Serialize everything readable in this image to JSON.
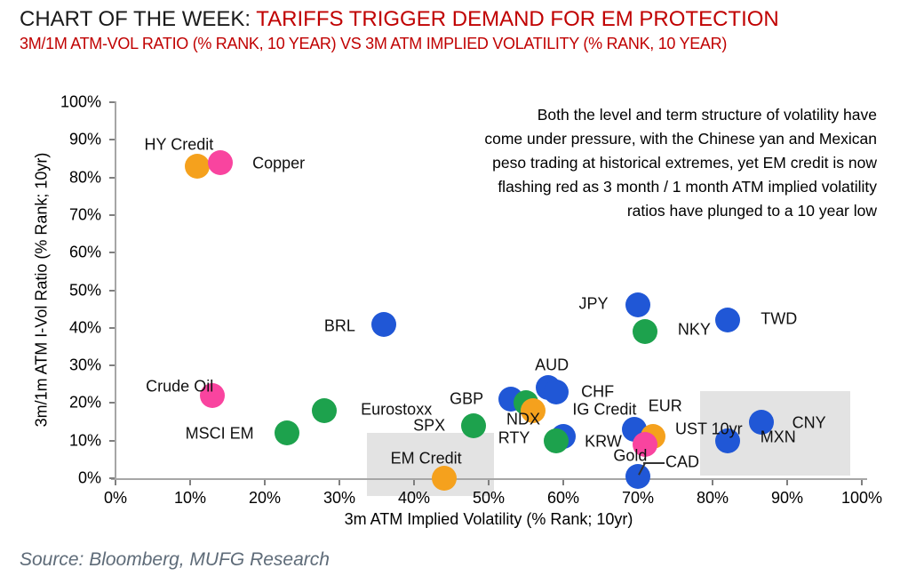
{
  "header": {
    "title_prefix": "CHART OF THE WEEK: ",
    "title_highlight": "TARIFFS TRIGGER DEMAND FOR EM PROTECTION",
    "subtitle": "3M/1M ATM-VOL RATIO (% RANK, 10 YEAR) VS 3M ATM IMPLIED VOLATILITY (% RANK, 10 YEAR)"
  },
  "annotation": {
    "lines": [
      "Both the level and term structure of volatility have",
      "come under pressure, with the Chinese yan and Mexican",
      "peso trading at historical extremes, yet EM credit is now",
      "flashing red as 3 month / 1 month ATM implied volatility",
      "ratios have plunged to a 10 year low"
    ]
  },
  "source": "Source: Bloomberg, MUFG Research",
  "colors": {
    "title_highlight": "#C00000",
    "subtitle": "#C00000",
    "fx": "#2057D6",
    "equity": "#1DA24D",
    "credit": "#F5A11D",
    "rates": "#F5A11D",
    "commodity": "#F9449F",
    "highlight_box": "#E3E3E3",
    "axis": "#A6A6A6",
    "source_text": "#5E6B78"
  },
  "chart_data": {
    "type": "scatter",
    "title": "CHART OF THE WEEK: TARIFFS TRIGGER DEMAND FOR EM PROTECTION",
    "xlabel": "3m ATM Implied Volatility (% Rank; 10yr)",
    "ylabel": "3m/1m ATM I-Vol Ratio (% Rank; 10yr)",
    "xlim": [
      0,
      100
    ],
    "ylim": [
      0,
      100
    ],
    "grid": false,
    "x_ticks": [
      "0%",
      "10%",
      "20%",
      "30%",
      "40%",
      "50%",
      "60%",
      "70%",
      "80%",
      "90%",
      "100%"
    ],
    "y_ticks": [
      "0%",
      "10%",
      "20%",
      "30%",
      "40%",
      "50%",
      "60%",
      "70%",
      "80%",
      "90%",
      "100%"
    ],
    "legend": "none (color denotes asset class: blue=FX, green=equity, orange=credit/rates, pink=commodity)",
    "highlight_boxes": [
      {
        "x1": 33.7,
        "x2": 50.7,
        "y1": -4.7,
        "y2": 12.0
      },
      {
        "x1": 78.3,
        "x2": 98.4,
        "y1": 0.7,
        "y2": 23.2
      }
    ],
    "points": [
      {
        "name": "HY Credit",
        "x": 11,
        "y": 83,
        "series": "credit",
        "label": [
          -21,
          -24
        ]
      },
      {
        "name": "Copper",
        "x": 14,
        "y": 84,
        "series": "commodity",
        "label": [
          66,
          1
        ]
      },
      {
        "name": "Crude Oil",
        "x": 13,
        "y": 22,
        "series": "commodity",
        "label": [
          -37,
          -10
        ]
      },
      {
        "name": "MSCI EM",
        "x": 23,
        "y": 12,
        "series": "equity",
        "label": [
          -76,
          1
        ]
      },
      {
        "name": "Eurostoxx",
        "x": 28,
        "y": 18,
        "series": "equity",
        "label": [
          81,
          -1
        ]
      },
      {
        "name": "SPX",
        "x": 48,
        "y": 14,
        "series": "equity",
        "label": [
          -50,
          0
        ]
      },
      {
        "name": "BRL",
        "x": 36,
        "y": 41,
        "series": "fx",
        "label": [
          -50,
          2
        ]
      },
      {
        "name": "EM Credit",
        "x": 44,
        "y": 0,
        "series": "credit",
        "label": [
          -20,
          -22
        ]
      },
      {
        "name": "GBP",
        "x": 53,
        "y": 21,
        "series": "fx",
        "label": [
          -50,
          0
        ]
      },
      {
        "name": "NDX",
        "x": 55,
        "y": 20,
        "series": "equity",
        "label": [
          -3,
          19
        ]
      },
      {
        "name": "IG Credit",
        "x": 56,
        "y": 18,
        "series": "credit",
        "label": [
          80,
          -1
        ]
      },
      {
        "name": "AUD",
        "x": 58,
        "y": 24,
        "series": "fx",
        "label": [
          4,
          -25
        ]
      },
      {
        "name": "CHF",
        "x": 59,
        "y": 23,
        "series": "fx",
        "label": [
          47,
          0
        ]
      },
      {
        "name": "JPY",
        "x": 70,
        "y": 46,
        "series": "fx",
        "label": [
          -50,
          -1
        ]
      },
      {
        "name": "NKY",
        "x": 71,
        "y": 39,
        "series": "equity",
        "label": [
          55,
          -2
        ]
      },
      {
        "name": "TWD",
        "x": 82,
        "y": 42,
        "series": "fx",
        "label": [
          58,
          -1
        ]
      },
      {
        "name": "KRW",
        "x": 60,
        "y": 11,
        "series": "fx",
        "label": [
          45,
          6
        ]
      },
      {
        "name": "RTY",
        "x": 59,
        "y": 10,
        "series": "equity",
        "label": [
          -47,
          -3
        ]
      },
      {
        "name": "EUR",
        "x": 69.5,
        "y": 13,
        "series": "fx",
        "label": [
          35,
          -26
        ]
      },
      {
        "name": "UST 10yr",
        "x": 72,
        "y": 11,
        "series": "rates",
        "label": [
          63,
          -8
        ]
      },
      {
        "name": "Gold",
        "x": 71,
        "y": 9,
        "series": "commodity",
        "label": [
          -17,
          13
        ]
      },
      {
        "name": "CAD",
        "x": 70,
        "y": 0.5,
        "series": "fx",
        "label": [
          50,
          -16
        ]
      },
      {
        "name": "CNY",
        "x": 86.5,
        "y": 15,
        "series": "fx",
        "label": [
          54,
          1
        ]
      },
      {
        "name": "MXN",
        "x": 82,
        "y": 10,
        "series": "fx",
        "label": [
          57,
          -4
        ]
      }
    ]
  }
}
